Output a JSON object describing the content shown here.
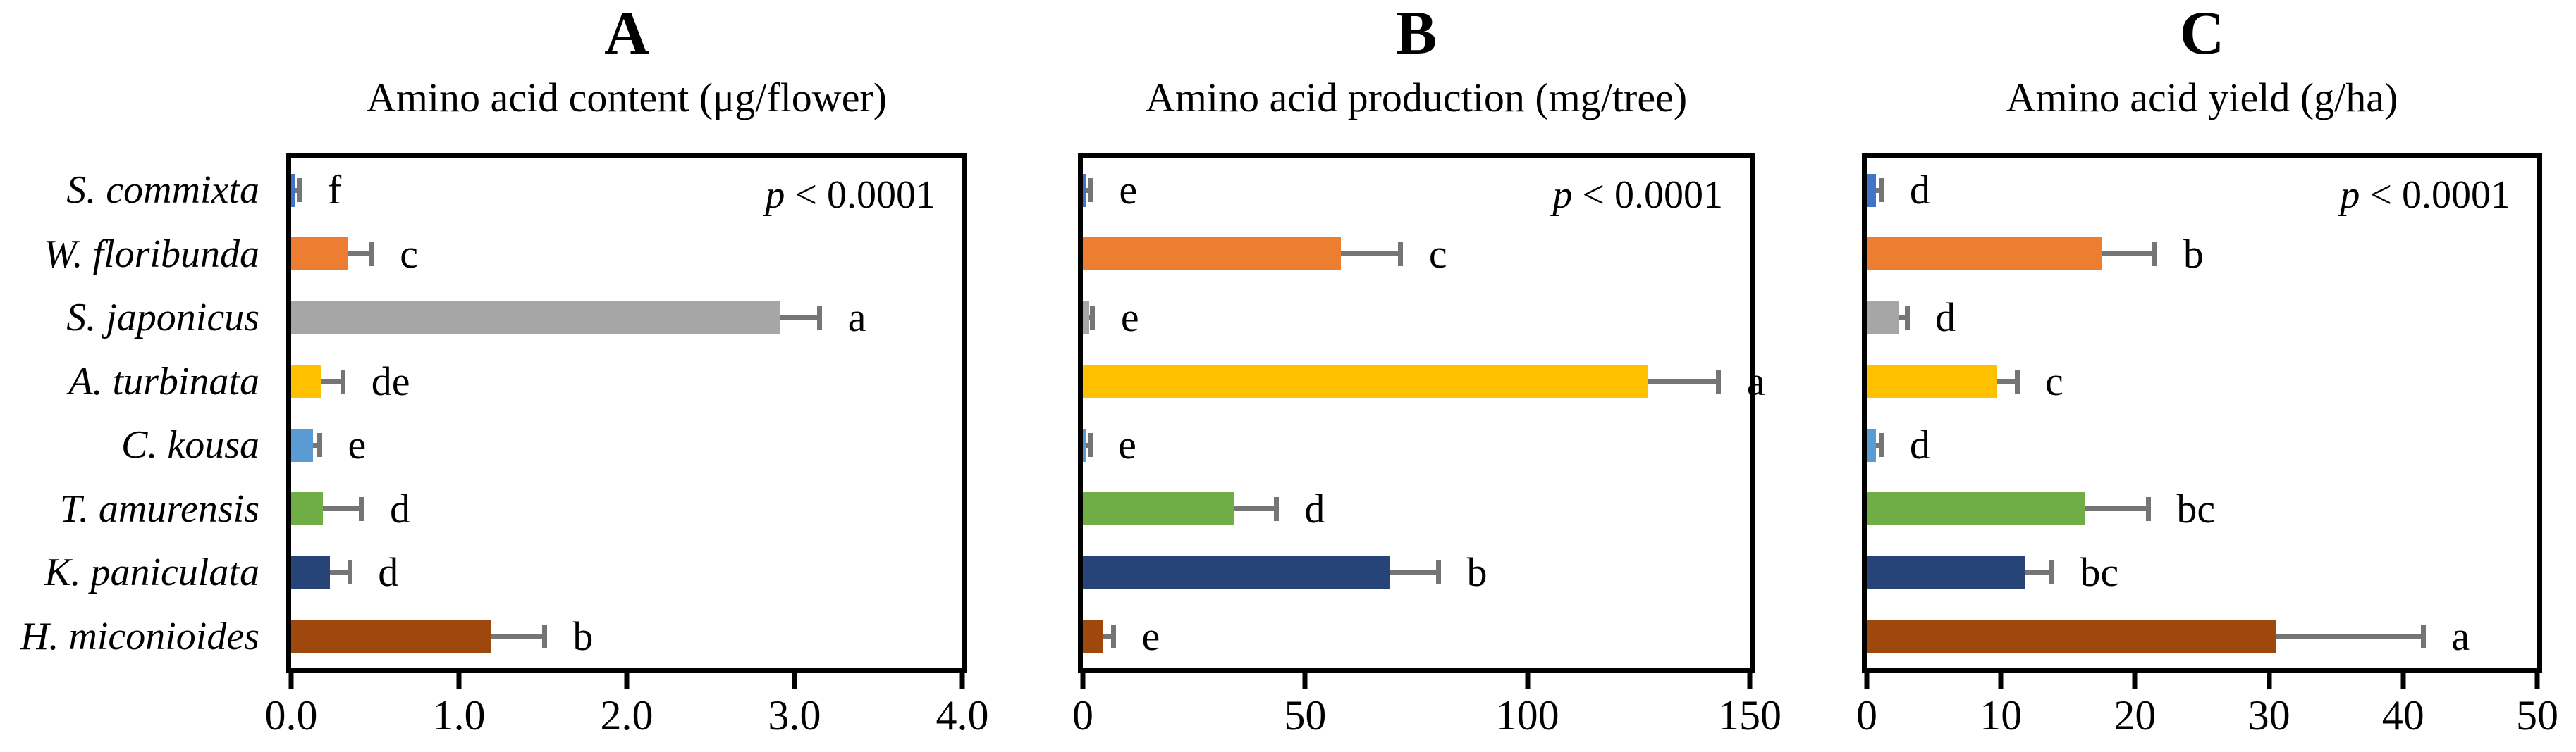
{
  "figure": {
    "error_bar_color": "#757575",
    "frame_color": "#000000",
    "background_color": "#FFFFFF",
    "species": [
      {
        "label": "S. commixta",
        "color": "#4472C4"
      },
      {
        "label": "W. floribunda",
        "color": "#ED7D31"
      },
      {
        "label": "S. japonicus",
        "color": "#A6A6A6"
      },
      {
        "label": "A. turbinata",
        "color": "#FFC000"
      },
      {
        "label": "C. kousa",
        "color": "#5B9BD5"
      },
      {
        "label": "T. amurensis",
        "color": "#70AD47"
      },
      {
        "label": "K. paniculata",
        "color": "#264478"
      },
      {
        "label": "H. miconioides",
        "color": "#9E480E"
      }
    ]
  },
  "chart_data": [
    {
      "type": "bar",
      "orientation": "horizontal",
      "panel_letter": "A",
      "title": "Amino acid content (μg/flower)",
      "p_italic": "p",
      "p_rest": "< 0.0001",
      "categories": [
        "S. commixta",
        "W. floribunda",
        "S. japonicus",
        "A. turbinata",
        "C. kousa",
        "T. amurensis",
        "K. paniculata",
        "H. miconioides"
      ],
      "values": [
        0.02,
        0.34,
        2.91,
        0.18,
        0.13,
        0.19,
        0.23,
        1.19
      ],
      "errors": [
        0.03,
        0.14,
        0.24,
        0.13,
        0.04,
        0.23,
        0.12,
        0.32
      ],
      "sig_letters": [
        "f",
        "c",
        "a",
        "de",
        "e",
        "d",
        "d",
        "b"
      ],
      "xlim": [
        0,
        4
      ],
      "tick_values": [
        0,
        1,
        2,
        3,
        4
      ],
      "tick_labels": [
        "0.0",
        "1.0",
        "2.0",
        "3.0",
        "4.0"
      ],
      "grid": false,
      "legend": false
    },
    {
      "type": "bar",
      "orientation": "horizontal",
      "panel_letter": "B",
      "title": "Amino acid production (mg/tree)",
      "p_italic": "p",
      "p_rest": "< 0.0001",
      "categories": [
        "S. commixta",
        "W. floribunda",
        "S. japonicus",
        "A. turbinata",
        "C. kousa",
        "T. amurensis",
        "K. paniculata",
        "H. miconioides"
      ],
      "values": [
        0.8,
        58,
        1.4,
        127,
        0.8,
        34,
        69,
        4.5
      ],
      "errors": [
        1.0,
        13.5,
        0.8,
        16,
        0.8,
        9.5,
        11,
        2.4
      ],
      "sig_letters": [
        "e",
        "c",
        "e",
        "a",
        "e",
        "d",
        "b",
        "e"
      ],
      "xlim": [
        0,
        150
      ],
      "tick_values": [
        0,
        50,
        100,
        150
      ],
      "tick_labels": [
        "0",
        "50",
        "100",
        "150"
      ],
      "grid": false,
      "legend": false
    },
    {
      "type": "bar",
      "orientation": "horizontal",
      "panel_letter": "C",
      "title": "Amino acid yield (g/ha)",
      "p_italic": "p",
      "p_rest": "< 0.0001",
      "categories": [
        "S. commixta",
        "W. floribunda",
        "S. japonicus",
        "A. turbinata",
        "C. kousa",
        "T. amurensis",
        "K. paniculata",
        "H. miconioides"
      ],
      "values": [
        0.7,
        17.5,
        2.4,
        9.7,
        0.7,
        16.3,
        11.8,
        30.5
      ],
      "errors": [
        0.4,
        4.0,
        0.6,
        1.5,
        0.4,
        4.7,
        2.0,
        11.0
      ],
      "sig_letters": [
        "d",
        "b",
        "d",
        "c",
        "d",
        "bc",
        "bc",
        "a"
      ],
      "xlim": [
        0,
        50
      ],
      "tick_values": [
        0,
        10,
        20,
        30,
        40,
        50
      ],
      "tick_labels": [
        "0",
        "10",
        "20",
        "30",
        "40",
        "50"
      ],
      "grid": false,
      "legend": false
    }
  ]
}
